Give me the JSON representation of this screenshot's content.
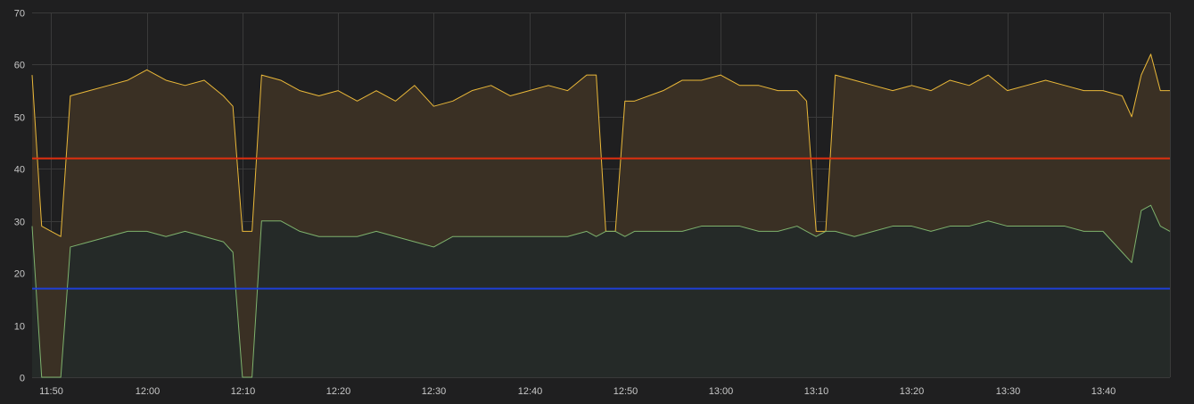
{
  "chart_data": {
    "type": "area",
    "title": "",
    "xlabel": "",
    "ylabel": "",
    "xlim": [
      "11:48",
      "13:47"
    ],
    "ylim": [
      0,
      70
    ],
    "grid": true,
    "y_ticks": [
      0,
      10,
      20,
      30,
      40,
      50,
      60,
      70
    ],
    "x_ticks": [
      "11:50",
      "12:00",
      "12:10",
      "12:20",
      "12:30",
      "12:40",
      "12:50",
      "13:00",
      "13:10",
      "13:20",
      "13:30",
      "13:40"
    ],
    "colors": {
      "background": "#1f1f20",
      "grid": "#3a3a3a",
      "upper_series": "#eab839",
      "upper_fill": "#3a3024",
      "lower_series": "#7eb26d",
      "lower_fill": "#252a28",
      "threshold_high": "#e02f0f",
      "threshold_low": "#1f3fd6"
    },
    "thresholds": [
      {
        "value": 42,
        "color": "#e02f0f"
      },
      {
        "value": 17,
        "color": "#1f3fd6"
      }
    ],
    "series": [
      {
        "color": "#eab839",
        "x": [
          "11:48",
          "11:49",
          "11:50",
          "11:51",
          "11:52",
          "11:54",
          "11:56",
          "11:58",
          "12:00",
          "12:02",
          "12:04",
          "12:06",
          "12:08",
          "12:09",
          "12:10",
          "12:11",
          "12:12",
          "12:14",
          "12:16",
          "12:18",
          "12:20",
          "12:22",
          "12:24",
          "12:26",
          "12:28",
          "12:30",
          "12:32",
          "12:34",
          "12:36",
          "12:38",
          "12:40",
          "12:42",
          "12:44",
          "12:46",
          "12:47",
          "12:48",
          "12:49",
          "12:50",
          "12:51",
          "12:54",
          "12:56",
          "12:58",
          "13:00",
          "13:02",
          "13:04",
          "13:06",
          "13:08",
          "13:09",
          "13:10",
          "13:11",
          "13:12",
          "13:14",
          "13:16",
          "13:18",
          "13:20",
          "13:22",
          "13:24",
          "13:26",
          "13:28",
          "13:30",
          "13:32",
          "13:34",
          "13:36",
          "13:38",
          "13:40",
          "13:42",
          "13:43",
          "13:44",
          "13:45",
          "13:46",
          "13:47"
        ],
        "y": [
          58,
          29,
          28,
          27,
          54,
          55,
          56,
          57,
          59,
          57,
          56,
          57,
          54,
          52,
          28,
          28,
          58,
          57,
          55,
          54,
          55,
          53,
          55,
          53,
          56,
          52,
          53,
          55,
          56,
          54,
          55,
          56,
          55,
          58,
          58,
          28,
          28,
          53,
          53,
          55,
          57,
          57,
          58,
          56,
          56,
          55,
          55,
          53,
          28,
          28,
          58,
          57,
          56,
          55,
          56,
          55,
          57,
          56,
          58,
          55,
          56,
          57,
          56,
          55,
          55,
          54,
          50,
          58,
          62,
          55,
          55
        ]
      },
      {
        "color": "#7eb26d",
        "x": [
          "11:48",
          "11:49",
          "11:50",
          "11:51",
          "11:52",
          "11:54",
          "11:56",
          "11:58",
          "12:00",
          "12:02",
          "12:04",
          "12:06",
          "12:08",
          "12:09",
          "12:10",
          "12:11",
          "12:12",
          "12:14",
          "12:16",
          "12:18",
          "12:20",
          "12:22",
          "12:24",
          "12:26",
          "12:28",
          "12:30",
          "12:32",
          "12:34",
          "12:36",
          "12:38",
          "12:40",
          "12:42",
          "12:44",
          "12:46",
          "12:47",
          "12:48",
          "12:49",
          "12:50",
          "12:51",
          "12:54",
          "12:56",
          "12:58",
          "13:00",
          "13:02",
          "13:04",
          "13:06",
          "13:08",
          "13:09",
          "13:10",
          "13:11",
          "13:12",
          "13:14",
          "13:16",
          "13:18",
          "13:20",
          "13:22",
          "13:24",
          "13:26",
          "13:28",
          "13:30",
          "13:32",
          "13:34",
          "13:36",
          "13:38",
          "13:40",
          "13:42",
          "13:43",
          "13:44",
          "13:45",
          "13:46",
          "13:47"
        ],
        "y": [
          29,
          0,
          0,
          0,
          25,
          26,
          27,
          28,
          28,
          27,
          28,
          27,
          26,
          24,
          0,
          0,
          30,
          30,
          28,
          27,
          27,
          27,
          28,
          27,
          26,
          25,
          27,
          27,
          27,
          27,
          27,
          27,
          27,
          28,
          27,
          28,
          28,
          27,
          28,
          28,
          28,
          29,
          29,
          29,
          28,
          28,
          29,
          28,
          27,
          28,
          28,
          27,
          28,
          29,
          29,
          28,
          29,
          29,
          30,
          29,
          29,
          29,
          29,
          28,
          28,
          24,
          22,
          32,
          33,
          29,
          28
        ]
      }
    ]
  }
}
